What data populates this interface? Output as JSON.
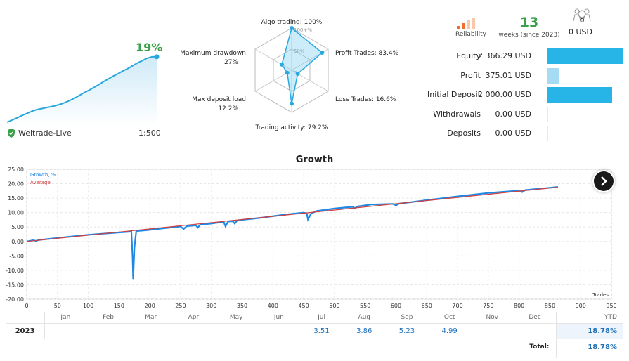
{
  "growth_summary": {
    "percent": "19%",
    "account": "Weltrade-Live",
    "leverage": "1:500",
    "sparkline": [
      0.0,
      0.6,
      1.2,
      1.9,
      2.5,
      3.1,
      3.6,
      3.9,
      4.2,
      4.5,
      4.8,
      5.2,
      5.7,
      6.3,
      7.0,
      7.8,
      8.6,
      9.3,
      10.1,
      10.9,
      11.8,
      12.6,
      13.4,
      14.1,
      14.9,
      15.6,
      16.4,
      17.2,
      17.9,
      18.6,
      19.0,
      19.0
    ]
  },
  "radar": {
    "axes": [
      {
        "label": "Algo trading: 100%",
        "value": 100
      },
      {
        "label": "Profit Trades: 83.4%",
        "value": 83.4
      },
      {
        "label": "Loss Trades: 16.6%",
        "value": 16.6
      },
      {
        "label": "Trading activity: 79.2%",
        "value": 79.2
      },
      {
        "label": "Max deposit load:",
        "label2": "12.2%",
        "value": 12.2
      },
      {
        "label": "Maximum drawdown:",
        "label2": "27%",
        "value": 27
      }
    ],
    "rings": [
      "0",
      "50%",
      "100+%"
    ]
  },
  "reliability": {
    "label": "Reliability",
    "bars": [
      2,
      4,
      6,
      8
    ],
    "filled": 2
  },
  "weeks": {
    "value": "13",
    "label": "weeks (since 2023)"
  },
  "subscribers": {
    "count": "0",
    "value": "0 USD"
  },
  "stats": [
    {
      "label": "Equity",
      "value": "2 366.29 USD",
      "fraction": 1.0,
      "color": "#27b4e6"
    },
    {
      "label": "Profit",
      "value": "375.01 USD",
      "fraction": 0.16,
      "color": "#a6dcf3"
    },
    {
      "label": "Initial Deposit",
      "value": "2 000.00 USD",
      "fraction": 0.85,
      "color": "#27b4e6"
    },
    {
      "label": "Withdrawals",
      "value": "0.00 USD",
      "fraction": 0.0,
      "color": "#27b4e6"
    },
    {
      "label": "Deposits",
      "value": "0.00 USD",
      "fraction": 0.0,
      "color": "#27b4e6"
    }
  ],
  "chart_data": {
    "type": "line",
    "title": "Growth",
    "xlabel": "Trades",
    "ylabel": "",
    "xlim": [
      0,
      950
    ],
    "ylim": [
      -20,
      25
    ],
    "xticks": [
      0,
      50,
      100,
      150,
      200,
      250,
      300,
      350,
      400,
      450,
      500,
      550,
      600,
      650,
      700,
      750,
      800,
      850,
      900,
      950
    ],
    "yticks": [
      "25.00",
      "20.00",
      "15.00",
      "10.00",
      "5.00",
      "0.00",
      "-5.00",
      "-10.00",
      "-15.00",
      "-20.00"
    ],
    "yticks_num": [
      25,
      20,
      15,
      10,
      5,
      0,
      -5,
      -10,
      -15,
      -20
    ],
    "grid": true,
    "legend": "top-left",
    "series": [
      {
        "name": "Growth, %",
        "color": "#1e88e5",
        "points": [
          [
            0,
            0.0
          ],
          [
            10,
            0.4
          ],
          [
            15,
            0.2
          ],
          [
            20,
            0.5
          ],
          [
            50,
            1.2
          ],
          [
            100,
            2.3
          ],
          [
            150,
            3.1
          ],
          [
            165,
            3.3
          ],
          [
            170,
            3.4
          ],
          [
            172,
            -5.0
          ],
          [
            173,
            -13.0
          ],
          [
            175,
            -2.0
          ],
          [
            178,
            3.6
          ],
          [
            190,
            3.8
          ],
          [
            200,
            4.0
          ],
          [
            220,
            4.5
          ],
          [
            250,
            5.2
          ],
          [
            255,
            4.3
          ],
          [
            260,
            5.3
          ],
          [
            275,
            5.6
          ],
          [
            278,
            4.8
          ],
          [
            282,
            5.8
          ],
          [
            300,
            6.2
          ],
          [
            320,
            6.8
          ],
          [
            323,
            5.2
          ],
          [
            327,
            6.9
          ],
          [
            335,
            7.0
          ],
          [
            338,
            6.2
          ],
          [
            342,
            7.3
          ],
          [
            380,
            8.2
          ],
          [
            420,
            9.3
          ],
          [
            450,
            10.0
          ],
          [
            455,
            9.7
          ],
          [
            457,
            7.6
          ],
          [
            462,
            9.6
          ],
          [
            470,
            10.5
          ],
          [
            500,
            11.4
          ],
          [
            530,
            12.0
          ],
          [
            533,
            11.5
          ],
          [
            537,
            12.1
          ],
          [
            560,
            12.8
          ],
          [
            595,
            13.0
          ],
          [
            600,
            12.5
          ],
          [
            605,
            13.1
          ],
          [
            650,
            14.3
          ],
          [
            700,
            15.6
          ],
          [
            750,
            16.8
          ],
          [
            800,
            17.6
          ],
          [
            805,
            17.1
          ],
          [
            810,
            17.8
          ],
          [
            850,
            18.6
          ],
          [
            863,
            18.9
          ]
        ]
      },
      {
        "name": "Average",
        "color": "#d04040",
        "points": [
          [
            0,
            0.0
          ],
          [
            863,
            18.8
          ]
        ]
      }
    ]
  },
  "months": {
    "headers": [
      "Jan",
      "Feb",
      "Mar",
      "Apr",
      "May",
      "Jun",
      "Jul",
      "Aug",
      "Sep",
      "Oct",
      "Nov",
      "Dec",
      "YTD"
    ],
    "rows": [
      {
        "year": "2023",
        "values": [
          "",
          "",
          "",
          "",
          "",
          "",
          "3.51",
          "3.86",
          "5.23",
          "4.99",
          "",
          "",
          "18.78%"
        ]
      }
    ],
    "total_label": "Total:",
    "total_value": "18.78%"
  },
  "nav": {
    "next_icon": "chevron-right-icon"
  }
}
